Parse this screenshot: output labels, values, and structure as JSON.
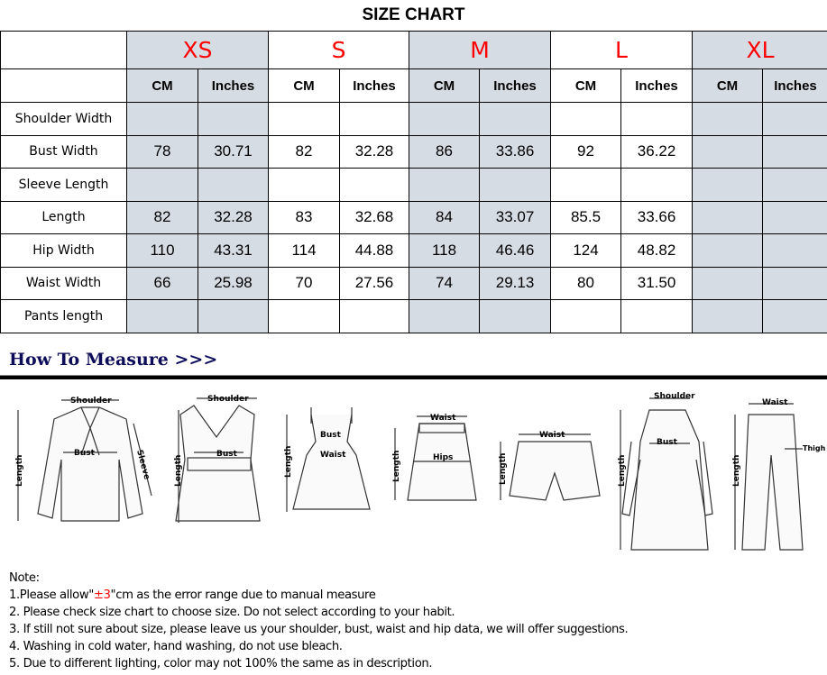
{
  "title": "SIZE CHART",
  "sizes": [
    "XS",
    "S",
    "M",
    "L",
    "XL"
  ],
  "units": [
    "CM",
    "Inches"
  ],
  "rows": [
    {
      "label": "Shoulder Width",
      "values": [
        "",
        "",
        "",
        "",
        "",
        "",
        "",
        "",
        "",
        ""
      ]
    },
    {
      "label": "Bust Width",
      "values": [
        "78",
        "30.71",
        "82",
        "32.28",
        "86",
        "33.86",
        "92",
        "36.22",
        "",
        ""
      ]
    },
    {
      "label": "Sleeve Length",
      "values": [
        "",
        "",
        "",
        "",
        "",
        "",
        "",
        "",
        "",
        ""
      ]
    },
    {
      "label": "Length",
      "values": [
        "82",
        "32.28",
        "83",
        "32.68",
        "84",
        "33.07",
        "85.5",
        "33.66",
        "",
        ""
      ]
    },
    {
      "label": "Hip Width",
      "values": [
        "110",
        "43.31",
        "114",
        "44.88",
        "118",
        "46.46",
        "124",
        "48.82",
        "",
        ""
      ]
    },
    {
      "label": "Waist Width",
      "values": [
        "66",
        "25.98",
        "70",
        "27.56",
        "74",
        "29.13",
        "80",
        "31.50",
        "",
        ""
      ]
    },
    {
      "label": "Pants length",
      "values": [
        "",
        "",
        "",
        "",
        "",
        "",
        "",
        "",
        "",
        ""
      ]
    }
  ],
  "how_to_measure": "How To Measure >>>",
  "diagram_labels": {
    "shoulder": "Shoulder",
    "bust": "Bust",
    "length": "Length",
    "sleeve": "Sleeve",
    "waist": "Waist",
    "hips": "Hips",
    "thigh": "Thigh"
  },
  "notes": {
    "heading": "Note:",
    "n1_pre": "1.Please allow\"",
    "n1_red": "±3",
    "n1_post": "\"cm as the error range due to manual measure",
    "n2": "2. Please check size chart to choose size. Do not select according to your habit.",
    "n3": "3. If still not sure about size, please leave us your shoulder, bust, waist and hip data, we will offer suggestions.",
    "n4": "4. Washing in cold water, hand washing, do not use bleach.",
    "n5": "5. Due to different lighting, color may not 100% the same as in description."
  },
  "colors": {
    "size_red": "#ff0000",
    "shade": "#d6dce4",
    "heading_navy": "#0d0d5a"
  }
}
